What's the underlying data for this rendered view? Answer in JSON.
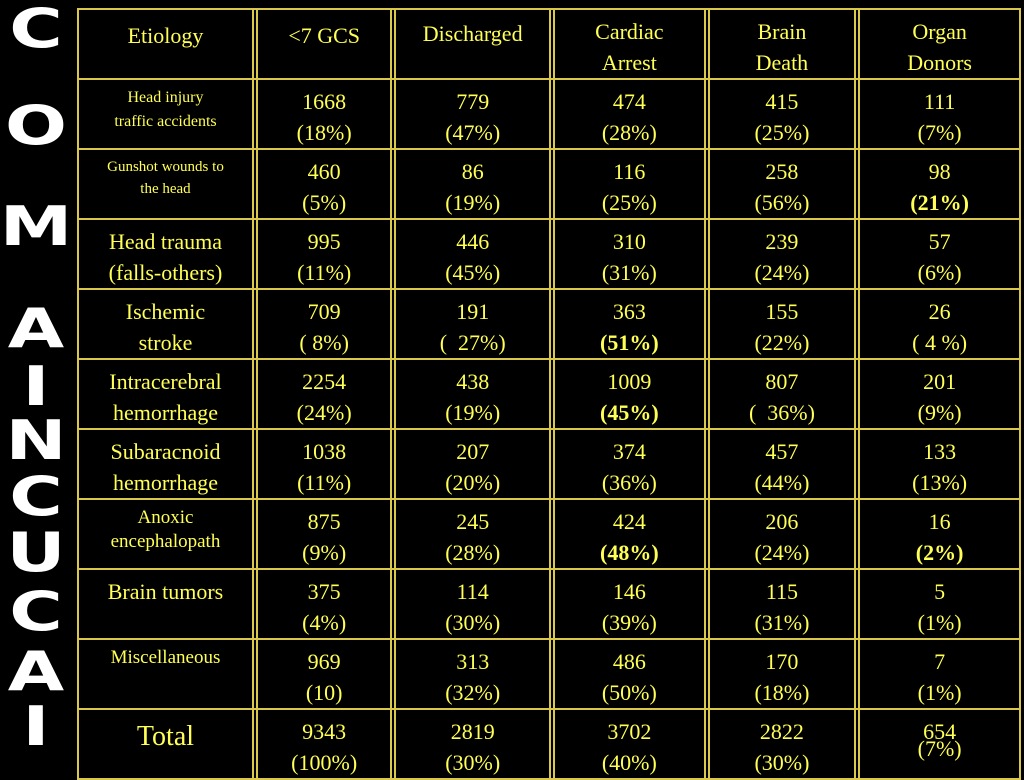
{
  "side_title": [
    "C",
    "O",
    "M",
    "A",
    "I",
    "N",
    "C",
    "U",
    "C",
    "A",
    "I"
  ],
  "headers": {
    "etiology": "Etiology",
    "gcs": "<7 GCS",
    "discharged": "Discharged",
    "cardiac_arrest": [
      "Cardiac",
      "Arrest"
    ],
    "brain_death": [
      "Brain",
      "Death"
    ],
    "organ_donors": [
      "Organ",
      "Donors"
    ]
  },
  "rows": [
    {
      "label": [
        "Head injury",
        "traffic accidents"
      ],
      "gcs": [
        "1668",
        "(18%)"
      ],
      "discharged": [
        "779",
        "(47%)"
      ],
      "cardiac": [
        "474",
        "(28%)"
      ],
      "brain": [
        "415",
        "(25%)"
      ],
      "organ": [
        "111",
        "(7%)"
      ]
    },
    {
      "label": [
        "Gunshot  wounds to",
        "the head"
      ],
      "gcs": [
        "460",
        "(5%)"
      ],
      "discharged": [
        "86",
        "(19%)"
      ],
      "cardiac": [
        "116",
        "(25%)"
      ],
      "brain": [
        "258",
        "(56%)"
      ],
      "organ": [
        "98",
        "(21%)"
      ]
    },
    {
      "label": [
        "Head trauma",
        "(falls-others)"
      ],
      "gcs": [
        "995",
        "(11%)"
      ],
      "discharged": [
        "446",
        "(45%)"
      ],
      "cardiac": [
        "310",
        "(31%)"
      ],
      "brain": [
        "239",
        "(24%)"
      ],
      "organ": [
        "57",
        "(6%)"
      ]
    },
    {
      "label": [
        "Ischemic",
        "stroke"
      ],
      "gcs": [
        "709",
        "( 8%)"
      ],
      "discharged": [
        "191",
        "(  27%)"
      ],
      "cardiac": [
        "363",
        "(51%)"
      ],
      "brain": [
        "155",
        "(22%)"
      ],
      "organ": [
        "26",
        "( 4 %)"
      ]
    },
    {
      "label": [
        "Intracerebral",
        "hemorrhage"
      ],
      "gcs": [
        "2254",
        "(24%)"
      ],
      "discharged": [
        "438",
        "(19%)"
      ],
      "cardiac": [
        "1009",
        "(45%)"
      ],
      "brain": [
        "807",
        "(  36%)"
      ],
      "organ": [
        "201",
        "(9%)"
      ]
    },
    {
      "label": [
        "Subaracnoid",
        "hemorrhage"
      ],
      "gcs": [
        "1038",
        "(11%)"
      ],
      "discharged": [
        "207",
        "(20%)"
      ],
      "cardiac": [
        "374",
        "(36%)"
      ],
      "brain": [
        "457",
        "(44%)"
      ],
      "organ": [
        "133",
        "(13%)"
      ]
    },
    {
      "label": [
        "Anoxic",
        "encephalopath"
      ],
      "gcs": [
        "875",
        "(9%)"
      ],
      "discharged": [
        "245",
        "(28%)"
      ],
      "cardiac": [
        "424",
        "(48%)"
      ],
      "brain": [
        "206",
        "(24%)"
      ],
      "organ": [
        "16",
        "(2%)"
      ]
    },
    {
      "label": [
        "Brain tumors",
        ""
      ],
      "gcs": [
        "375",
        "(4%)"
      ],
      "discharged": [
        "114",
        "(30%)"
      ],
      "cardiac": [
        "146",
        "(39%)"
      ],
      "brain": [
        "115",
        "(31%)"
      ],
      "organ": [
        "5",
        "(1%)"
      ]
    },
    {
      "label": [
        "Miscellaneous",
        ""
      ],
      "gcs": [
        "969",
        "(10)"
      ],
      "discharged": [
        "313",
        "(32%)"
      ],
      "cardiac": [
        "486",
        "(50%)"
      ],
      "brain": [
        "170",
        "(18%)"
      ],
      "organ": [
        "7",
        "(1%)"
      ]
    },
    {
      "label": [
        "Total",
        ""
      ],
      "gcs": [
        "9343",
        "(100%)"
      ],
      "discharged": [
        "2819",
        "(30%)"
      ],
      "cardiac": [
        "3702",
        "(40%)"
      ],
      "brain": [
        "2822",
        "(30%)"
      ],
      "organ": [
        "654",
        "(7%)"
      ]
    }
  ],
  "colors": {
    "background": "#000000",
    "text": "#ffff55",
    "grid": "#d9c84a",
    "side_title": "#ffffff"
  }
}
